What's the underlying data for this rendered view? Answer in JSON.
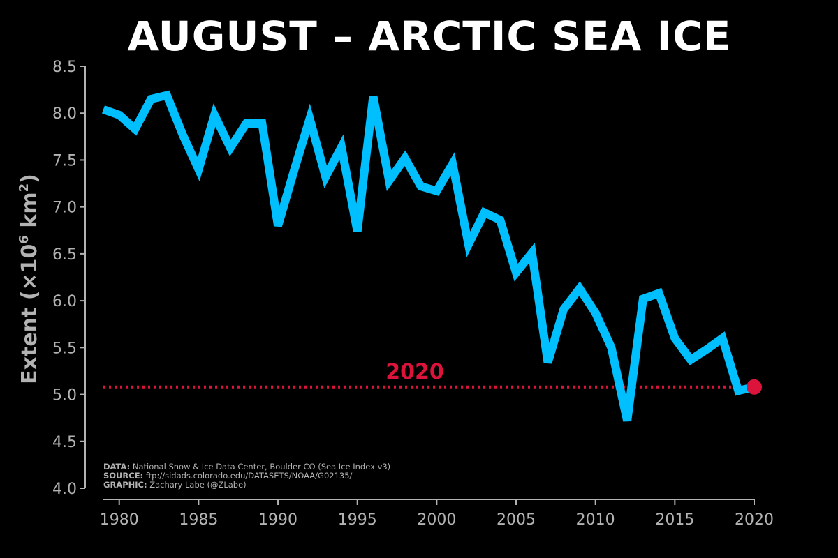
{
  "chart_data": {
    "type": "line",
    "title": "AUGUST – ARCTIC SEA ICE",
    "xlabel": "",
    "ylabel": "Extent (×10",
    "ylabel_sup_1": "6",
    "ylabel_mid": " km",
    "ylabel_sup_2": "2",
    "ylabel_end": ")",
    "xlim": [
      1979,
      2020
    ],
    "ylim": [
      4.0,
      8.5
    ],
    "xticks": [
      1980,
      1985,
      1990,
      1995,
      2000,
      2005,
      2010,
      2015,
      2020
    ],
    "yticks": [
      "4.0",
      "4.5",
      "5.0",
      "5.5",
      "6.0",
      "6.5",
      "7.0",
      "7.5",
      "8.0",
      "8.5"
    ],
    "grid": false,
    "series": [
      {
        "name": "August sea ice extent",
        "color": "#00bfff",
        "x": [
          1979,
          1980,
          1981,
          1982,
          1983,
          1984,
          1985,
          1986,
          1987,
          1988,
          1989,
          1990,
          1991,
          1992,
          1993,
          1994,
          1995,
          1996,
          1997,
          1998,
          1999,
          2000,
          2001,
          2002,
          2003,
          2004,
          2005,
          2006,
          2007,
          2008,
          2009,
          2010,
          2011,
          2012,
          2013,
          2014,
          2015,
          2016,
          2017,
          2018,
          2019,
          2020
        ],
        "values": [
          8.04,
          7.98,
          7.83,
          8.15,
          8.19,
          7.77,
          7.4,
          7.98,
          7.63,
          7.89,
          7.89,
          6.8,
          7.38,
          7.94,
          7.32,
          7.64,
          6.74,
          8.18,
          7.28,
          7.52,
          7.22,
          7.17,
          7.46,
          6.6,
          6.94,
          6.86,
          6.3,
          6.51,
          5.34,
          5.91,
          6.13,
          5.87,
          5.5,
          4.72,
          6.02,
          6.08,
          5.6,
          5.37,
          5.48,
          5.6,
          5.04,
          5.08
        ]
      }
    ],
    "reference_line": {
      "value": 5.08,
      "label": "2020",
      "color": "#dc143c"
    },
    "highlight_point": {
      "x": 2020,
      "y": 5.08,
      "color": "#dc143c"
    }
  },
  "credits": [
    {
      "label": "DATA:",
      "text": " National Snow & Ice Data Center, Boulder CO (Sea Ice Index v3)"
    },
    {
      "label": "SOURCE:",
      "text": " ftp://sidads.colorado.edu/DATASETS/NOAA/G02135/"
    },
    {
      "label": "GRAPHIC:",
      "text": " Zachary Labe (@ZLabe)"
    }
  ]
}
